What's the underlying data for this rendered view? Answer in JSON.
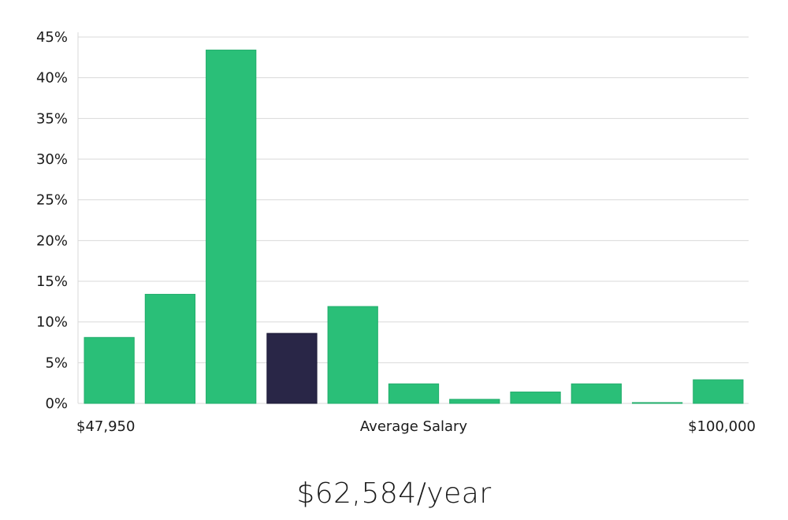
{
  "chart_data": {
    "type": "bar",
    "x_min_label": "$47,950",
    "x_center_label": "Average Salary",
    "x_max_label": "$100,000",
    "values": [
      8.1,
      13.4,
      43.4,
      8.6,
      11.9,
      2.4,
      0.5,
      1.4,
      2.4,
      0.1,
      2.9
    ],
    "highlight_index": 3,
    "ylim": [
      0,
      45
    ],
    "y_ticks": [
      0,
      5,
      10,
      15,
      20,
      25,
      30,
      35,
      40,
      45
    ],
    "y_tick_format": "percent",
    "grid": true,
    "colors": {
      "bar": "#2abf78",
      "bar_stroke": "#22ad6b",
      "highlight": "#292647",
      "highlight_stroke": "#1c1a36"
    }
  },
  "summary": {
    "salary_text": "$62,584/year"
  }
}
